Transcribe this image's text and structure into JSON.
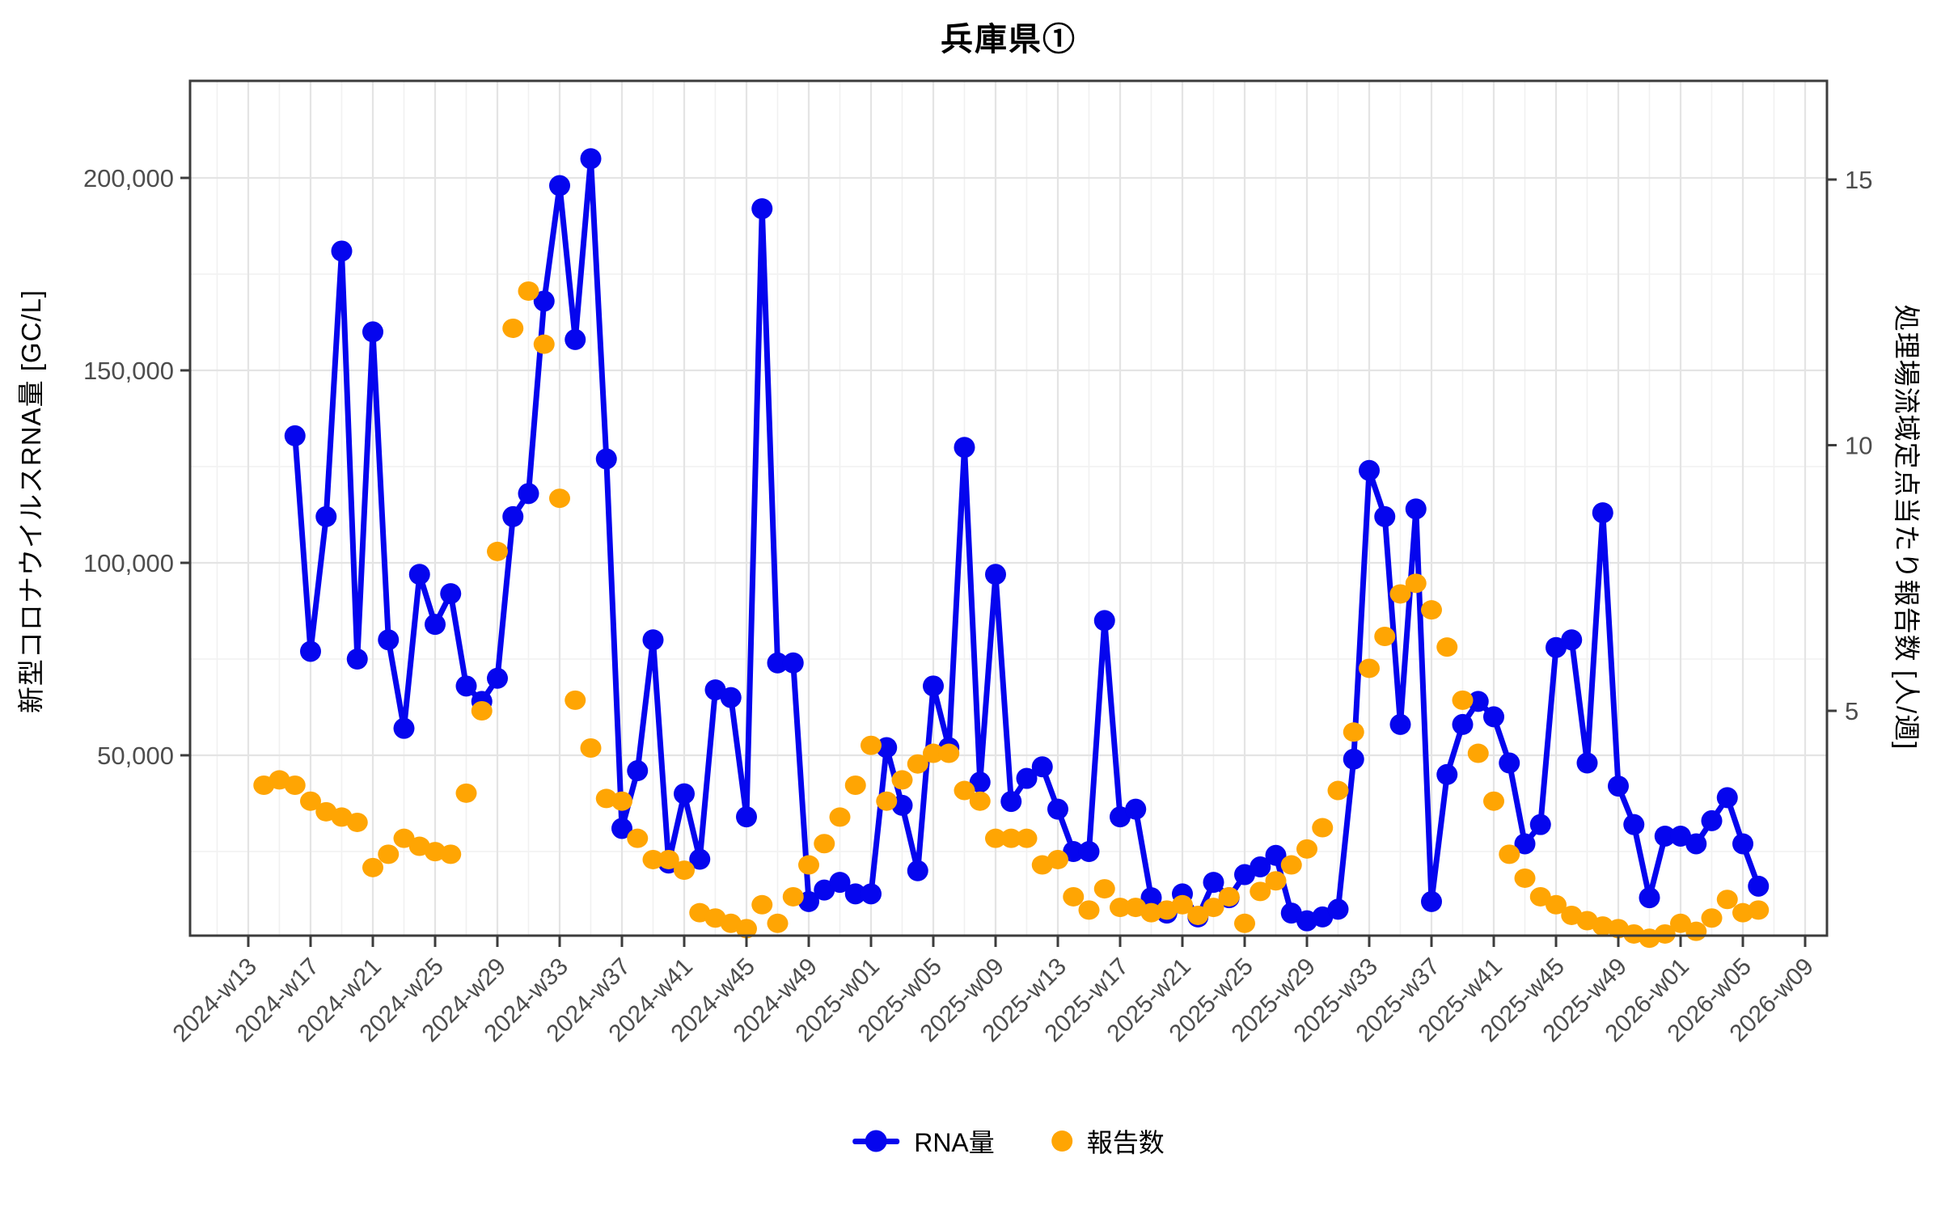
{
  "title": "兵庫県①",
  "axes": {
    "left_label": "新型コロナウイルスRNA量 [GC/L]",
    "right_label": "処理場流域定点当たり報告数 [人/週]",
    "left_tick_labels": [
      "50,000",
      "100,000",
      "150,000",
      "200,000"
    ],
    "right_tick_labels": [
      "5",
      "10",
      "15"
    ]
  },
  "legend": {
    "rna_label": "RNA量",
    "report_label": "報告数"
  },
  "colors": {
    "rna_blue": "#0505ee",
    "report_orange": "#ffa503",
    "grid_major": "#e4e4e4",
    "grid_minor": "#f1f1f1",
    "panel_border": "#3c3c3c",
    "tick_text": "#4d4d4d"
  },
  "chart_data": {
    "type": "line",
    "title": "兵庫県①",
    "x_label": "",
    "x_tick_every": 4,
    "grid": "on",
    "legend_position": "bottom",
    "weeks": [
      "2024-w13",
      "2024-w14",
      "2024-w15",
      "2024-w16",
      "2024-w17",
      "2024-w18",
      "2024-w19",
      "2024-w20",
      "2024-w21",
      "2024-w22",
      "2024-w23",
      "2024-w24",
      "2024-w25",
      "2024-w26",
      "2024-w27",
      "2024-w28",
      "2024-w29",
      "2024-w30",
      "2024-w31",
      "2024-w32",
      "2024-w33",
      "2024-w34",
      "2024-w35",
      "2024-w36",
      "2024-w37",
      "2024-w38",
      "2024-w39",
      "2024-w40",
      "2024-w41",
      "2024-w42",
      "2024-w43",
      "2024-w44",
      "2024-w45",
      "2024-w46",
      "2024-w47",
      "2024-w48",
      "2024-w49",
      "2024-w50",
      "2024-w51",
      "2024-w52",
      "2025-w01",
      "2025-w02",
      "2025-w03",
      "2025-w04",
      "2025-w05",
      "2025-w06",
      "2025-w07",
      "2025-w08",
      "2025-w09",
      "2025-w10",
      "2025-w11",
      "2025-w12",
      "2025-w13",
      "2025-w14",
      "2025-w15",
      "2025-w16",
      "2025-w17",
      "2025-w18",
      "2025-w19",
      "2025-w20",
      "2025-w21",
      "2025-w22",
      "2025-w23",
      "2025-w24",
      "2025-w25",
      "2025-w26",
      "2025-w27",
      "2025-w28",
      "2025-w29",
      "2025-w30",
      "2025-w31",
      "2025-w32",
      "2025-w33",
      "2025-w34",
      "2025-w35",
      "2025-w36",
      "2025-w37",
      "2025-w38",
      "2025-w39",
      "2025-w40",
      "2025-w41",
      "2025-w42",
      "2025-w43",
      "2025-w44",
      "2025-w45",
      "2025-w46",
      "2025-w47",
      "2025-w48",
      "2025-w49",
      "2025-w50",
      "2025-w51",
      "2025-w52",
      "2026-w01",
      "2026-w02",
      "2026-w03",
      "2026-w04",
      "2026-w05",
      "2026-w06",
      "2026-w07",
      "2026-w08",
      "2026-w09"
    ],
    "series": [
      {
        "name": "RNA量",
        "axis": "left",
        "unit": "GC/L",
        "color": "#0505ee",
        "values": [
          null,
          null,
          null,
          133000,
          77000,
          112000,
          181000,
          75000,
          160000,
          80000,
          57000,
          97000,
          84000,
          92000,
          68000,
          64000,
          70000,
          112000,
          118000,
          168000,
          198000,
          158000,
          205000,
          127000,
          31000,
          46000,
          80000,
          22000,
          40000,
          23000,
          67000,
          65000,
          34000,
          192000,
          74000,
          74000,
          12000,
          15000,
          17000,
          14000,
          14000,
          52000,
          37000,
          20000,
          68000,
          52000,
          130000,
          43000,
          97000,
          38000,
          44000,
          47000,
          36000,
          25000,
          25000,
          85000,
          34000,
          36000,
          13000,
          9000,
          14000,
          8000,
          17000,
          13000,
          19000,
          21000,
          24000,
          9000,
          7000,
          8000,
          10000,
          49000,
          124000,
          112000,
          58000,
          114000,
          12000,
          45000,
          58000,
          64000,
          60000,
          48000,
          27000,
          32000,
          78000,
          80000,
          48000,
          113000,
          42000,
          32000,
          13000,
          29000,
          29000,
          27000,
          33000,
          39000,
          27000,
          16000,
          null,
          null,
          null
        ]
      },
      {
        "name": "報告数",
        "axis": "right",
        "unit": "人/週",
        "color": "#ffa503",
        "values": [
          null,
          3.6,
          3.7,
          3.6,
          3.3,
          3.1,
          3.0,
          2.9,
          2.05,
          2.3,
          2.6,
          2.45,
          2.35,
          2.3,
          3.45,
          5.0,
          8.0,
          12.2,
          12.9,
          11.9,
          9.0,
          5.2,
          4.3,
          3.35,
          3.3,
          2.6,
          2.2,
          2.2,
          2.0,
          1.2,
          1.1,
          1.0,
          0.9,
          1.35,
          1.0,
          1.5,
          2.1,
          2.5,
          3.0,
          3.6,
          4.35,
          3.3,
          3.7,
          4.0,
          4.2,
          4.2,
          3.5,
          3.3,
          2.6,
          2.6,
          2.6,
          2.1,
          2.2,
          1.5,
          1.25,
          1.65,
          1.3,
          1.3,
          1.2,
          1.25,
          1.35,
          1.15,
          1.3,
          1.5,
          1.0,
          1.6,
          1.8,
          2.1,
          2.4,
          2.8,
          3.5,
          4.6,
          5.8,
          6.4,
          7.2,
          7.4,
          6.9,
          6.2,
          5.2,
          4.2,
          3.3,
          2.3,
          1.85,
          1.5,
          1.35,
          1.15,
          1.05,
          0.95,
          0.9,
          0.8,
          0.72,
          0.8,
          1.0,
          0.85,
          1.1,
          1.45,
          1.2,
          1.25,
          null,
          null,
          null
        ]
      }
    ],
    "y_left": {
      "label": "新型コロナウイルスRNA量 [GC/L]",
      "ticks": [
        50000,
        100000,
        150000,
        200000
      ],
      "lim": [
        0,
        228000
      ]
    },
    "y_right": {
      "label": "処理場流域定点当たり報告数 [人/週]",
      "ticks": [
        5,
        10,
        15
      ],
      "lim": [
        0,
        16.9
      ]
    }
  }
}
